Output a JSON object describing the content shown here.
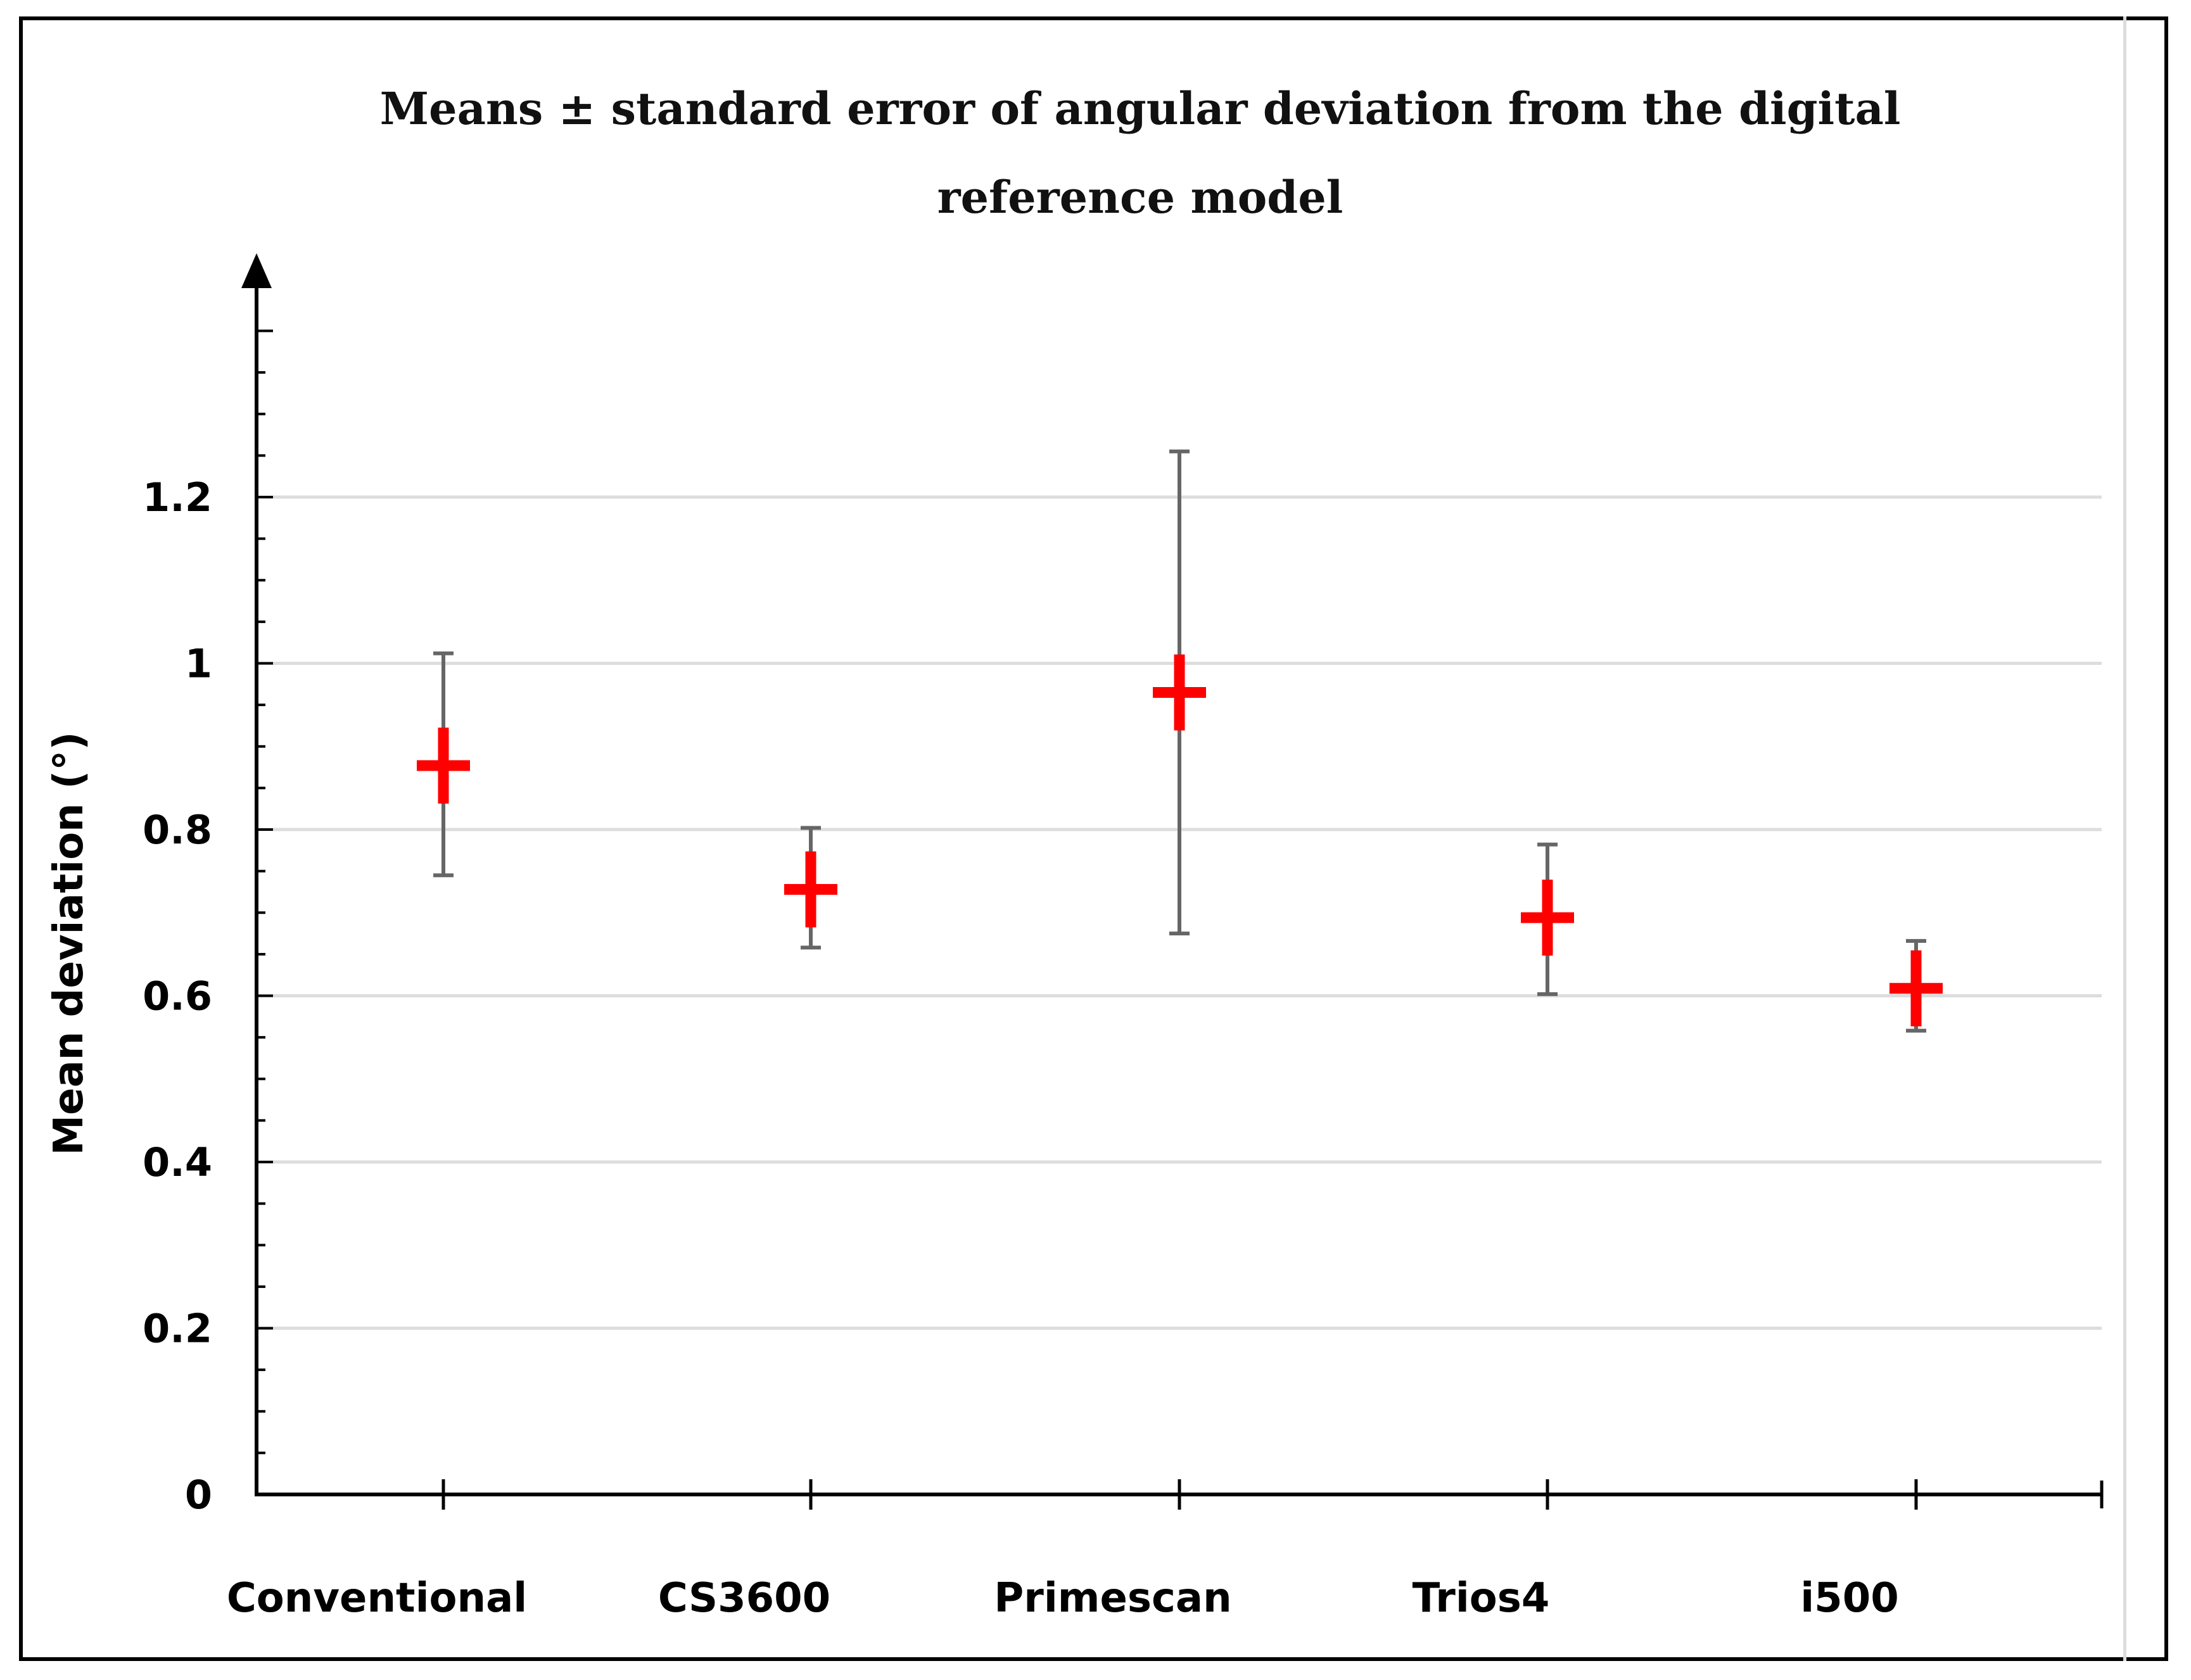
{
  "chart_data": {
    "type": "scatter",
    "title_line1": "Means ± standard error of angular deviation from the digital",
    "title_line2": "reference model",
    "ylabel": "Mean deviation (°)",
    "xlabel": "",
    "ylim": [
      0,
      1.4
    ],
    "yticks": [
      {
        "value": 0,
        "label": "0"
      },
      {
        "value": 0.2,
        "label": "0.2"
      },
      {
        "value": 0.4,
        "label": "0.4"
      },
      {
        "value": 0.6,
        "label": "0.6"
      },
      {
        "value": 0.8,
        "label": "0.8"
      },
      {
        "value": 1.0,
        "label": "1"
      },
      {
        "value": 1.2,
        "label": "1.2"
      }
    ],
    "gridlines": [
      0.2,
      0.4,
      0.6,
      0.8,
      1.0,
      1.2
    ],
    "categories": [
      "Conventional",
      "CS3600",
      "Primescan",
      "Trios4",
      "i500"
    ],
    "means": [
      0.877,
      0.728,
      0.965,
      0.694,
      0.609
    ],
    "error_lower": [
      0.745,
      0.658,
      0.675,
      0.602,
      0.558
    ],
    "error_upper": [
      1.012,
      0.802,
      1.255,
      0.782,
      0.666
    ],
    "marker_color": "#ff0000",
    "errorbar_color": "#666666",
    "grid_color": "#dddddd"
  }
}
